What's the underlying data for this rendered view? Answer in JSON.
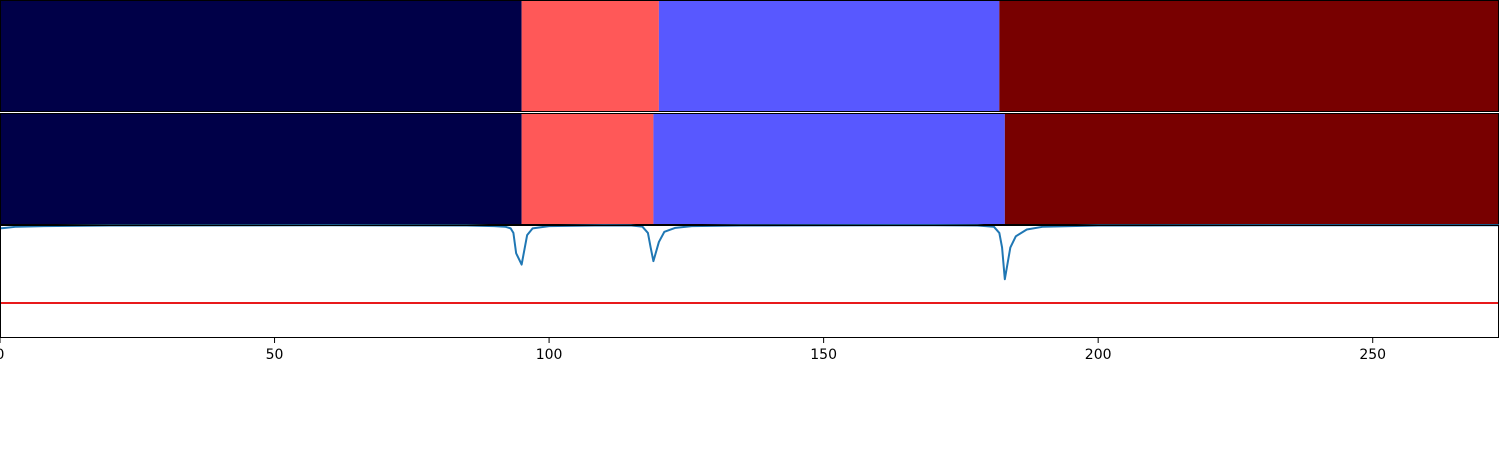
{
  "chart_data": [
    {
      "type": "bar",
      "orientation": "horizontal-segments",
      "name_on_chart": "",
      "x_range": [
        0,
        273
      ],
      "segments": [
        {
          "start": 0,
          "end": 95,
          "color": "#000048"
        },
        {
          "start": 95,
          "end": 120,
          "color": "#ff5858"
        },
        {
          "start": 120,
          "end": 182,
          "color": "#5858ff"
        },
        {
          "start": 182,
          "end": 273,
          "color": "#780000"
        }
      ]
    },
    {
      "type": "bar",
      "orientation": "horizontal-segments",
      "name_on_chart": "",
      "x_range": [
        0,
        273
      ],
      "segments": [
        {
          "start": 0,
          "end": 95,
          "color": "#000048"
        },
        {
          "start": 95,
          "end": 119,
          "color": "#ff5858"
        },
        {
          "start": 119,
          "end": 183,
          "color": "#5858ff"
        },
        {
          "start": 183,
          "end": 273,
          "color": "#780000"
        }
      ]
    },
    {
      "type": "line",
      "xlim": [
        0,
        273
      ],
      "ylim": [
        0.0,
        1.0
      ],
      "grid": false,
      "threshold": {
        "value": 0.31,
        "color": "#e8191b"
      },
      "series": [
        {
          "color": "#1f77b4",
          "points": [
            [
              0,
              0.97
            ],
            [
              1,
              0.975
            ],
            [
              3,
              0.985
            ],
            [
              8,
              0.99
            ],
            [
              20,
              0.995
            ],
            [
              60,
              0.998
            ],
            [
              85,
              0.995
            ],
            [
              90,
              0.99
            ],
            [
              92,
              0.985
            ],
            [
              93,
              0.97
            ],
            [
              93.5,
              0.93
            ],
            [
              94,
              0.75
            ],
            [
              95,
              0.65
            ],
            [
              96,
              0.91
            ],
            [
              97,
              0.97
            ],
            [
              100,
              0.99
            ],
            [
              110,
              0.997
            ],
            [
              115,
              0.995
            ],
            [
              117,
              0.985
            ],
            [
              118,
              0.93
            ],
            [
              118.5,
              0.8
            ],
            [
              119,
              0.68
            ],
            [
              120,
              0.85
            ],
            [
              121,
              0.94
            ],
            [
              123,
              0.975
            ],
            [
              126,
              0.99
            ],
            [
              135,
              0.995
            ],
            [
              170,
              0.998
            ],
            [
              178,
              0.995
            ],
            [
              181,
              0.985
            ],
            [
              182,
              0.93
            ],
            [
              182.5,
              0.8
            ],
            [
              183,
              0.52
            ],
            [
              184,
              0.8
            ],
            [
              185,
              0.9
            ],
            [
              187,
              0.96
            ],
            [
              190,
              0.985
            ],
            [
              200,
              0.995
            ],
            [
              240,
              0.998
            ],
            [
              273,
              0.998
            ]
          ]
        }
      ],
      "xticks": [
        0,
        50,
        100,
        150,
        200,
        250
      ],
      "xtick_labels": [
        "0",
        "50",
        "100",
        "150",
        "200",
        "250"
      ]
    }
  ]
}
